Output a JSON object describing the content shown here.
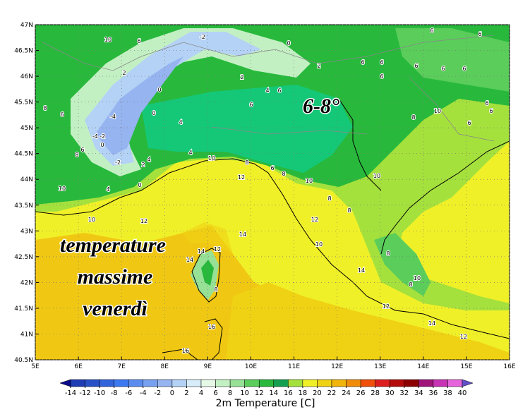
{
  "map": {
    "overlay_title": [
      "temperature",
      "massime",
      "venerdì"
    ],
    "highlight": "6-8°",
    "lat_ticks": [
      {
        "value": 47,
        "label": "47N"
      },
      {
        "value": 46.5,
        "label": "46.5N"
      },
      {
        "value": 46,
        "label": "46N"
      },
      {
        "value": 45.5,
        "label": "45.5N"
      },
      {
        "value": 45,
        "label": "45N"
      },
      {
        "value": 44.5,
        "label": "44.5N"
      },
      {
        "value": 44,
        "label": "44N"
      },
      {
        "value": 43.5,
        "label": "43.5N"
      },
      {
        "value": 43,
        "label": "43N"
      },
      {
        "value": 42.5,
        "label": "42.5N"
      },
      {
        "value": 42,
        "label": "42N"
      },
      {
        "value": 41.5,
        "label": "41.5N"
      },
      {
        "value": 41,
        "label": "41N"
      },
      {
        "value": 40.5,
        "label": "40.5N"
      }
    ],
    "lon_ticks": [
      {
        "value": 5,
        "label": "5E"
      },
      {
        "value": 6,
        "label": "6E"
      },
      {
        "value": 7,
        "label": "7E"
      },
      {
        "value": 8,
        "label": "8E"
      },
      {
        "value": 9,
        "label": "9E"
      },
      {
        "value": 10,
        "label": "10E"
      },
      {
        "value": 11,
        "label": "11E"
      },
      {
        "value": 12,
        "label": "12E"
      },
      {
        "value": 13,
        "label": "13E"
      },
      {
        "value": 14,
        "label": "14E"
      },
      {
        "value": 15,
        "label": "15E"
      },
      {
        "value": 16,
        "label": "16E"
      }
    ],
    "contour_labels": [
      "10",
      "6",
      "-2",
      "0",
      "2",
      "6",
      "6",
      "6",
      "6",
      "2",
      "0",
      "2",
      "4",
      "6",
      "6",
      "6",
      "6",
      "6",
      "8",
      "6",
      "-4",
      "0",
      "6",
      "6",
      "6",
      "-4 -2",
      "0",
      "4",
      "10",
      "6",
      "8",
      "6",
      "8",
      "4",
      "2",
      "-2",
      "10",
      "8",
      "6",
      "4",
      "12",
      "8",
      "10",
      "4",
      "0",
      "10",
      "10",
      "8",
      "8",
      "10",
      "12",
      "12",
      "14",
      "10",
      "14",
      "12",
      "14",
      "8",
      "14",
      "10",
      "8",
      "8",
      "12",
      "14",
      "12",
      "16",
      "16"
    ],
    "colorbar": {
      "label": "2m Temperature [C]",
      "ticks": [
        -14,
        -12,
        -10,
        -8,
        -6,
        -4,
        -2,
        0,
        2,
        4,
        6,
        8,
        10,
        12,
        14,
        16,
        18,
        20,
        22,
        24,
        26,
        28,
        30,
        32,
        34,
        36,
        38,
        40
      ],
      "colors": [
        "#0a0a8c",
        "#1e3cb4",
        "#2850c8",
        "#3264dc",
        "#3c78f0",
        "#5a8cf0",
        "#78a0f0",
        "#96b4f0",
        "#b4d2f5",
        "#d7eefa",
        "#e6f8e6",
        "#c3f0c3",
        "#96e196",
        "#5acd5a",
        "#28b93c",
        "#14a050",
        "#a5e13c",
        "#f0f028",
        "#f0d214",
        "#f0b40a",
        "#f08c0a",
        "#f0500a",
        "#dc1e1e",
        "#b40a0a",
        "#8c0000",
        "#a0147a",
        "#c832b4",
        "#e664dc",
        "#f0a0f0",
        "#6450c8"
      ]
    }
  }
}
